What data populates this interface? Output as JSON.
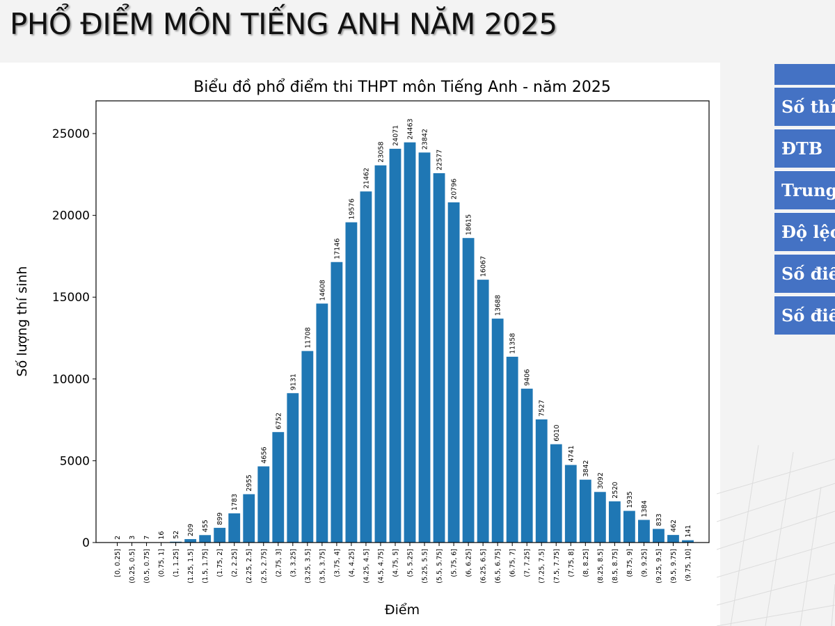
{
  "page": {
    "title": "PHỔ ĐIỂM MÔN TIẾNG ANH NĂM 2025"
  },
  "stats_table": {
    "header": "",
    "rows": [
      "Số thí",
      "ĐTB",
      "Trung",
      "Độ lệc",
      "Số điể",
      "Số điể"
    ]
  },
  "colors": {
    "bar": "#1f77b4",
    "table": "#4472c4"
  },
  "chart_data": {
    "type": "bar",
    "title": "Biểu đồ phổ điểm thi THPT môn Tiếng Anh - năm 2025",
    "xlabel": "Điểm",
    "ylabel": "Số lượng thí sinh",
    "ylim": [
      0,
      27000
    ],
    "yticks": [
      0,
      5000,
      10000,
      15000,
      20000,
      25000
    ],
    "grid": false,
    "categories": [
      "[0, 0.25]",
      "(0.25, 0.5]",
      "(0.5, 0.75]",
      "(0.75, 1]",
      "(1, 1.25]",
      "(1.25, 1.5]",
      "(1.5, 1.75]",
      "(1.75, 2]",
      "(2, 2.25]",
      "(2.25, 2.5]",
      "(2.5, 2.75]",
      "(2.75, 3]",
      "(3, 3.25]",
      "(3.25, 3.5]",
      "(3.5, 3.75]",
      "(3.75, 4]",
      "(4, 4.25]",
      "(4.25, 4.5]",
      "(4.5, 4.75]",
      "(4.75, 5]",
      "(5, 5.25]",
      "(5.25, 5.5]",
      "(5.5, 5.75]",
      "(5.75, 6]",
      "(6, 6.25]",
      "(6.25, 6.5]",
      "(6.5, 6.75]",
      "(6.75, 7]",
      "(7, 7.25]",
      "(7.25, 7.5]",
      "(7.5, 7.75]",
      "(7.75, 8]",
      "(8, 8.25]",
      "(8.25, 8.5]",
      "(8.5, 8.75]",
      "(8.75, 9]",
      "(9, 9.25]",
      "(9.25, 9.5]",
      "(9.5, 9.75]",
      "(9.75, 10]"
    ],
    "values": [
      2,
      3,
      7,
      16,
      52,
      209,
      455,
      899,
      1783,
      2955,
      4656,
      6752,
      9131,
      11708,
      14608,
      17146,
      19576,
      21462,
      23058,
      24071,
      24463,
      23842,
      22577,
      20796,
      18615,
      16067,
      13688,
      11358,
      9406,
      7527,
      6010,
      4741,
      3842,
      3092,
      2520,
      1935,
      1384,
      833,
      462,
      141
    ]
  }
}
